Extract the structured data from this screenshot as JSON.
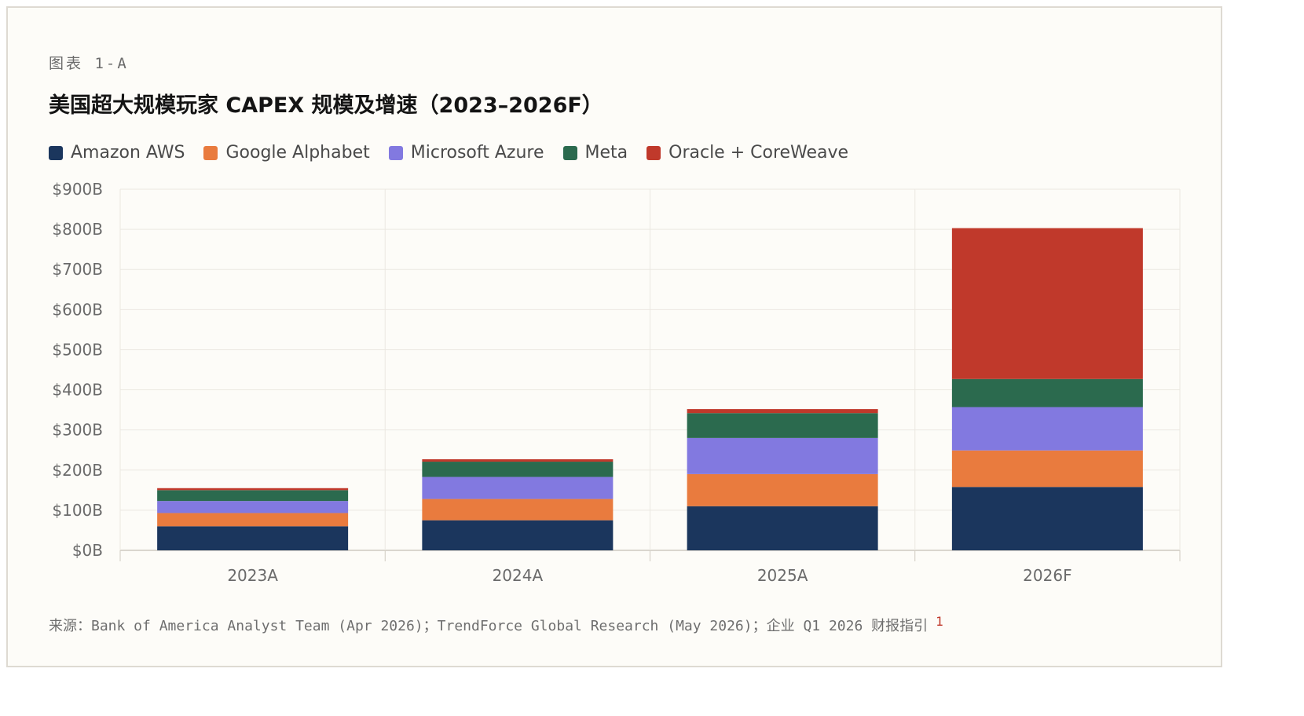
{
  "eyebrow": "图表 1-A",
  "title": "美国超大规模玩家 CAPEX 规模及增速（2023–2026F）",
  "source": {
    "text": "来源：Bank of America Analyst Team (Apr 2026)；TrendForce Global Research (May 2026)；企业 Q1 2026 财报指引",
    "footnote": "1"
  },
  "colors": {
    "amazon": "#1b365d",
    "google": "#e97b3e",
    "microsoft": "#8279e0",
    "meta": "#2b6a4e",
    "oracle": "#c0392b"
  },
  "chart_data": {
    "type": "bar",
    "stacked": true,
    "categories": [
      "2023A",
      "2024A",
      "2025A",
      "2026F"
    ],
    "series": [
      {
        "name": "Amazon AWS",
        "color": "#1b365d",
        "values": [
          60,
          75,
          110,
          158
        ]
      },
      {
        "name": "Google Alphabet",
        "color": "#e97b3e",
        "values": [
          33,
          53,
          80,
          91
        ]
      },
      {
        "name": "Microsoft Azure",
        "color": "#8279e0",
        "values": [
          30,
          55,
          90,
          108
        ]
      },
      {
        "name": "Meta",
        "color": "#2b6a4e",
        "values": [
          27,
          38,
          62,
          70
        ]
      },
      {
        "name": "Oracle + CoreWeave",
        "color": "#c0392b",
        "values": [
          5,
          6,
          10,
          376
        ]
      }
    ],
    "yticks": [
      "$0B",
      "$100B",
      "$200B",
      "$300B",
      "$400B",
      "$500B",
      "$600B",
      "$700B",
      "$800B",
      "$900B"
    ],
    "ylim": [
      0,
      900
    ],
    "grid": true,
    "legend_position": "top-left"
  }
}
